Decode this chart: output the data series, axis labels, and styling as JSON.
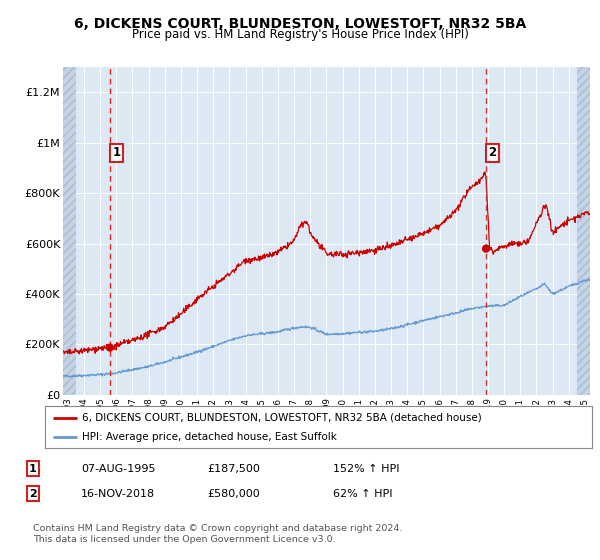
{
  "title1": "6, DICKENS COURT, BLUNDESTON, LOWESTOFT, NR32 5BA",
  "title2": "Price paid vs. HM Land Registry's House Price Index (HPI)",
  "ylim": [
    0,
    1300000
  ],
  "xlim_start": 1992.7,
  "xlim_end": 2025.3,
  "yticks": [
    0,
    200000,
    400000,
    600000,
    800000,
    1000000,
    1200000
  ],
  "ytick_labels": [
    "£0",
    "£200K",
    "£400K",
    "£600K",
    "£800K",
    "£1M",
    "£1.2M"
  ],
  "sale1_date": 1995.6,
  "sale1_price": 187500,
  "sale2_date": 2018.88,
  "sale2_price": 580000,
  "legend_red": "6, DICKENS COURT, BLUNDESTON, LOWESTOFT, NR32 5BA (detached house)",
  "legend_blue": "HPI: Average price, detached house, East Suffolk",
  "annotation1_num": "1",
  "annotation1_date": "07-AUG-1995",
  "annotation1_price": "£187,500",
  "annotation1_hpi": "152% ↑ HPI",
  "annotation2_num": "2",
  "annotation2_date": "16-NOV-2018",
  "annotation2_price": "£580,000",
  "annotation2_hpi": "62% ↑ HPI",
  "footer": "Contains HM Land Registry data © Crown copyright and database right 2024.\nThis data is licensed under the Open Government Licence v3.0.",
  "bg_color": "#dce9f5",
  "grid_color": "#ffffff",
  "red_line_color": "#cc0000",
  "blue_line_color": "#6699cc",
  "sale_dot_color": "#cc0000",
  "hatch_left_end": 1993.5,
  "hatch_right_start": 2024.5
}
